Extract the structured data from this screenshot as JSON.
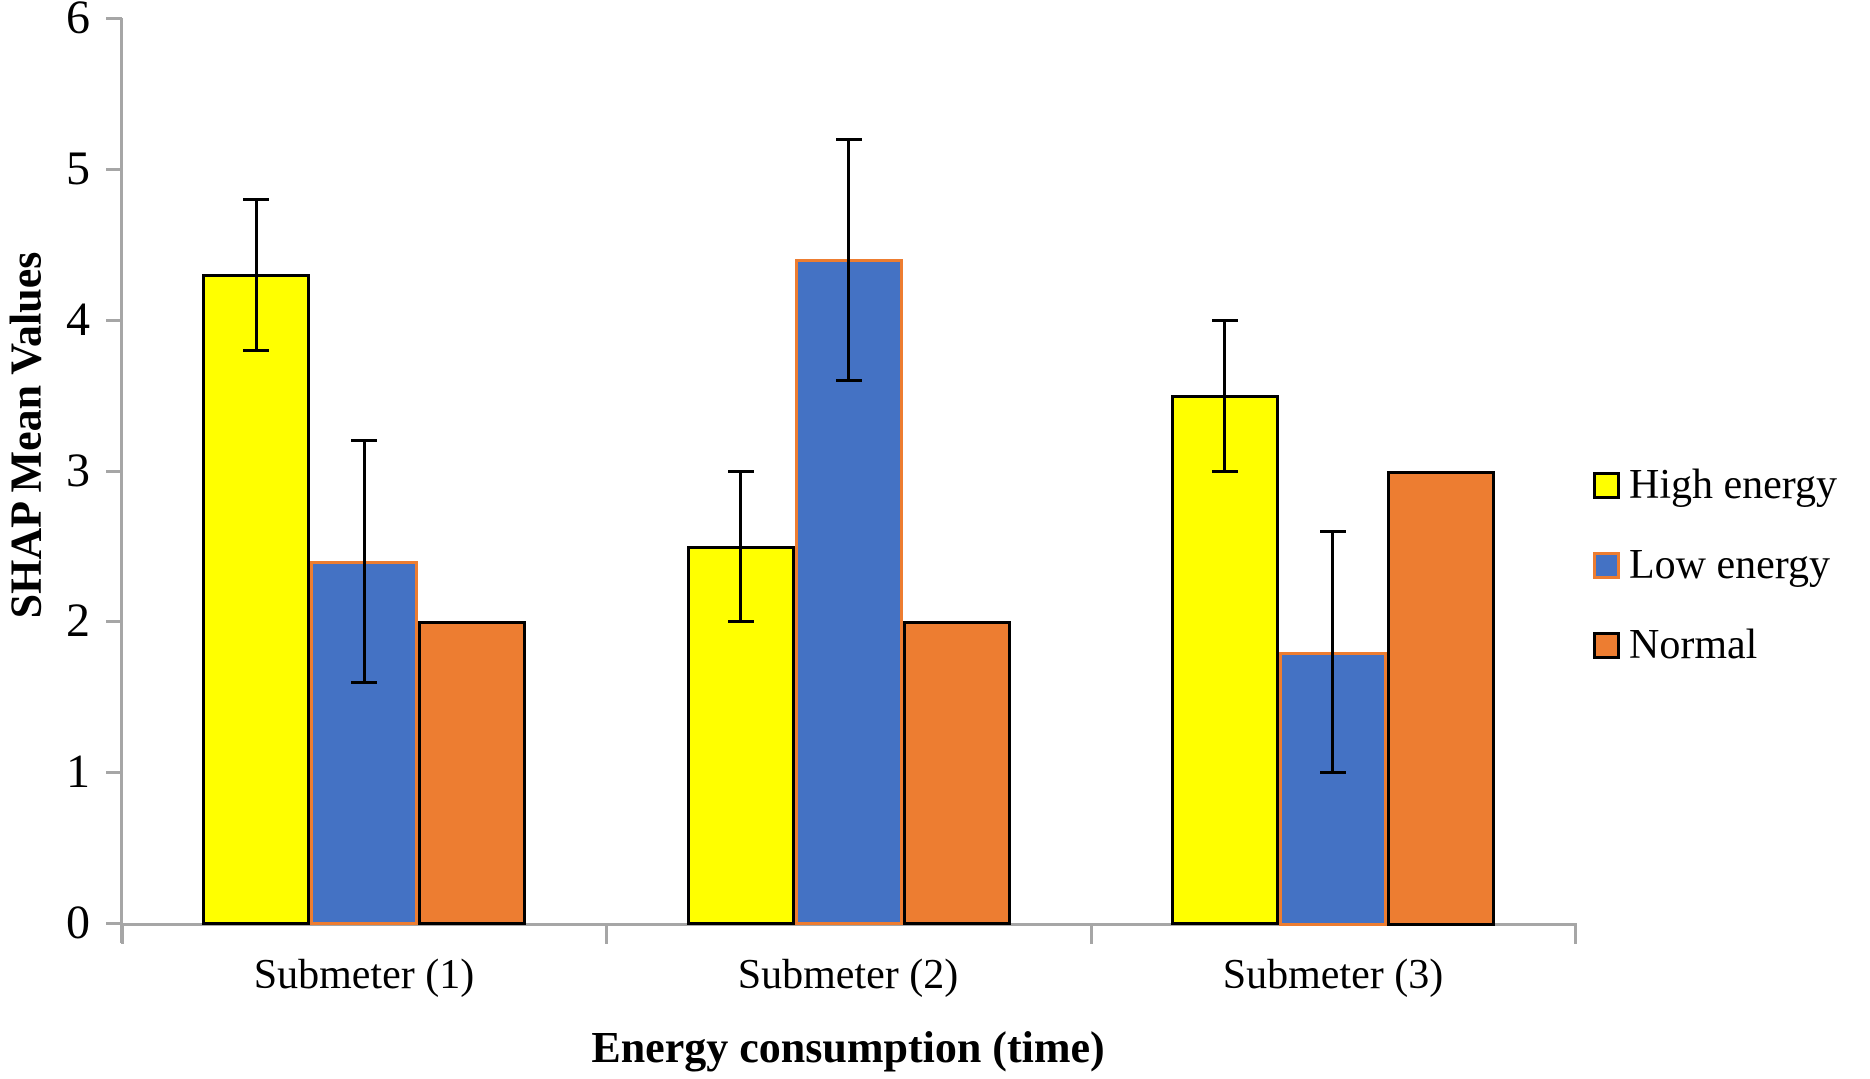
{
  "chart_data": {
    "type": "bar",
    "xlabel": "Energy consumption (time)",
    "ylabel": "SHAP Mean Values",
    "categories": [
      "Submeter (1)",
      "Submeter (2)",
      "Submeter (3)"
    ],
    "series": [
      {
        "name": "High energy",
        "fill": "#FFFF00",
        "border": "#000000",
        "values": [
          4.3,
          2.5,
          3.5
        ],
        "errors": [
          0.5,
          0.5,
          0.5
        ]
      },
      {
        "name": "Low energy",
        "fill": "#4472C4",
        "border": "#ED7D31",
        "values": [
          2.4,
          4.4,
          1.8
        ],
        "errors": [
          0.8,
          0.8,
          0.8
        ]
      },
      {
        "name": "Normal",
        "fill": "#ED7D31",
        "border": "#000000",
        "values": [
          2.0,
          2.0,
          3.0
        ],
        "errors": [
          null,
          null,
          null
        ]
      }
    ],
    "ylim": [
      0,
      6
    ],
    "yticks": [
      0,
      1,
      2,
      3,
      4,
      5,
      6
    ],
    "grid": "off",
    "legend_position": "right",
    "axis_color": "#A6A6A6",
    "error_bar_color": "#000000"
  }
}
